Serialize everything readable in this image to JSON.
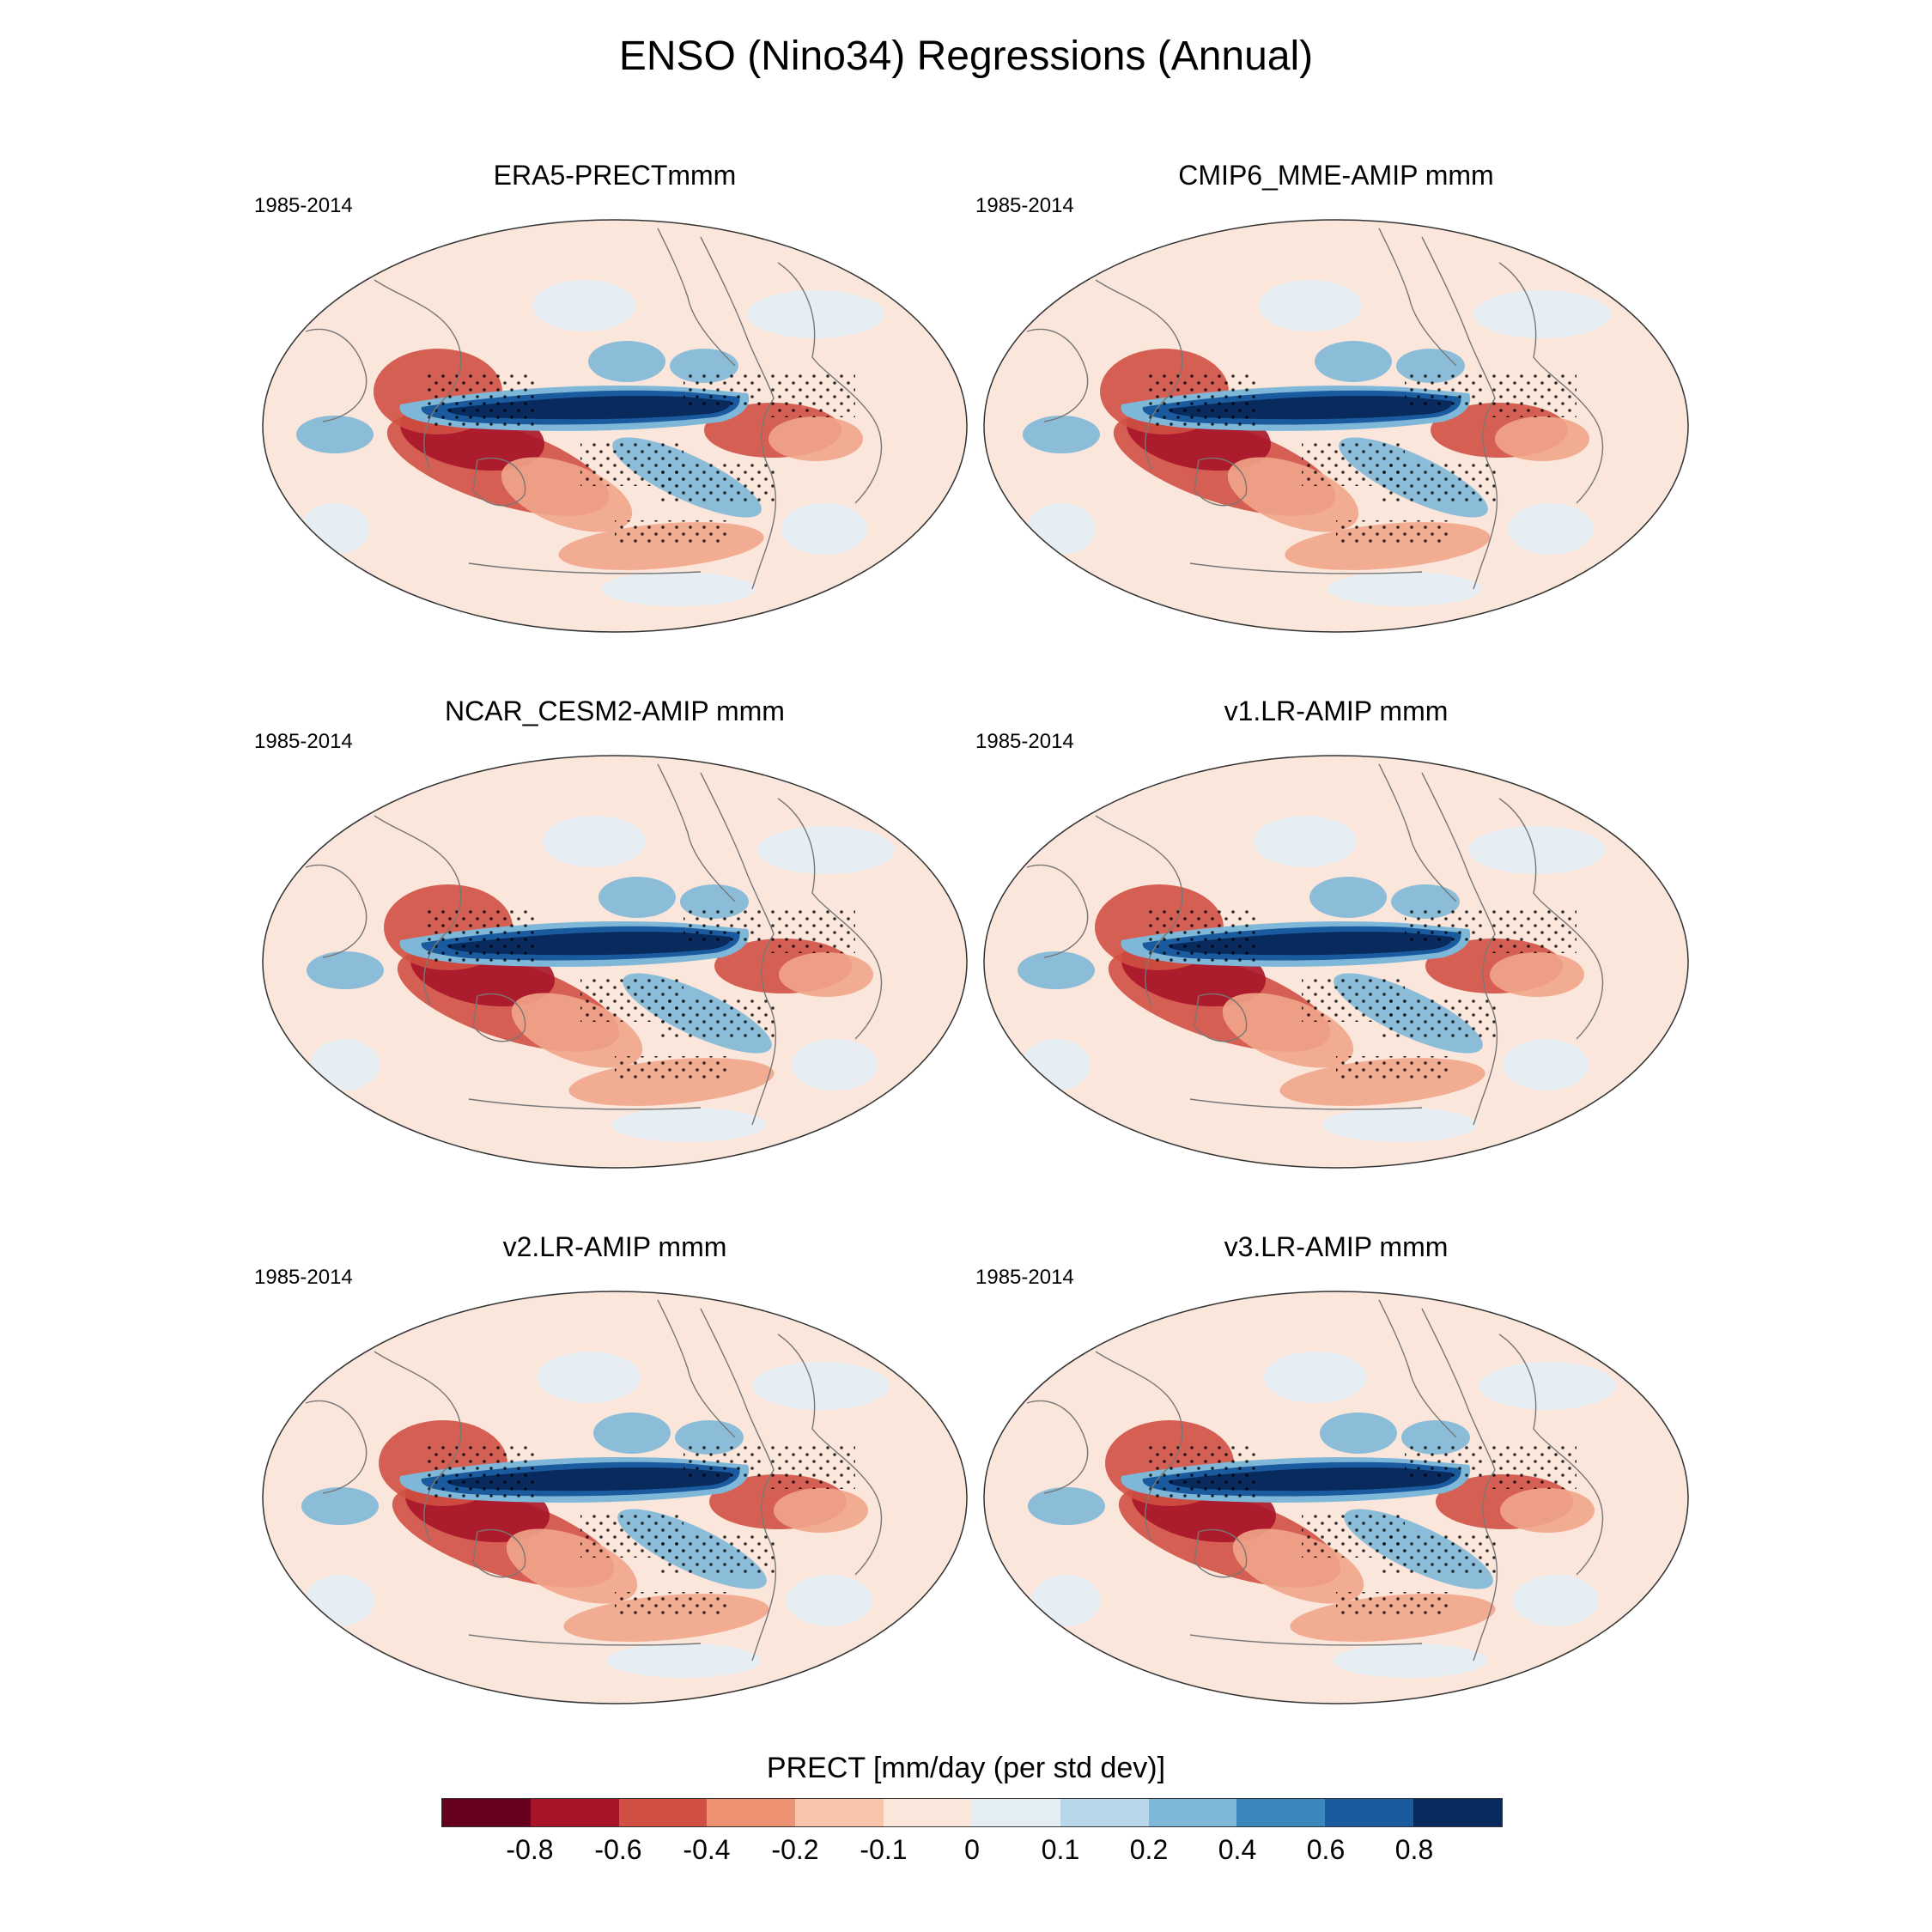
{
  "title": "ENSO (Nino34) Regressions (Annual)",
  "panels": [
    {
      "title": "ERA5-PRECTmmm",
      "period": "1985-2014"
    },
    {
      "title": "CMIP6_MME-AMIP  mmm",
      "period": "1985-2014"
    },
    {
      "title": "NCAR_CESM2-AMIP  mmm",
      "period": "1985-2014"
    },
    {
      "title": "v1.LR-AMIP  mmm",
      "period": "1985-2014"
    },
    {
      "title": "v2.LR-AMIP  mmm",
      "period": "1985-2014"
    },
    {
      "title": "v3.LR-AMIP  mmm",
      "period": "1985-2014"
    }
  ],
  "colorbar": {
    "title": "PRECT [mm/day (per std dev)]",
    "labels": [
      "-0.8",
      "-0.6",
      "-0.4",
      "-0.2",
      "-0.1",
      "0",
      "0.1",
      "0.2",
      "0.4",
      "0.6",
      "0.8"
    ],
    "colors": [
      "#67001f",
      "#a81529",
      "#d05043",
      "#ec9272",
      "#f8c4aa",
      "#fbe6dc",
      "#e4eef5",
      "#b8d7e9",
      "#7eb7d7",
      "#3a87bd",
      "#1a5b9f",
      "#082a5c"
    ]
  },
  "palette": {
    "dry_strong": "#a81529",
    "dry_mid": "#d05043",
    "dry_weak": "#f1a58a",
    "wet_strong": "#082a5c",
    "wet_mid": "#1a5b9f",
    "wet_weak": "#7eb7d7",
    "neutral_pos": "#fbe6dc",
    "neutral_neg": "#e4eef5",
    "coast": "#777777"
  }
}
